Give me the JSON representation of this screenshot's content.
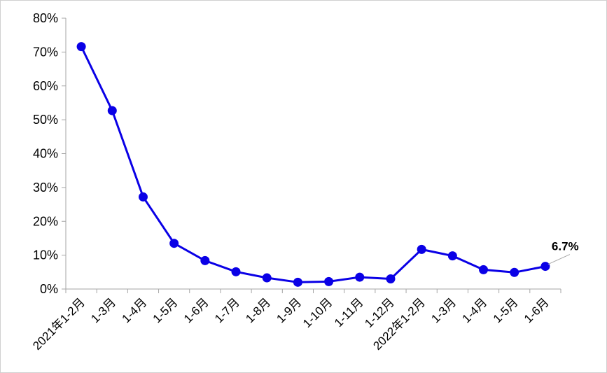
{
  "chart_data": {
    "type": "line",
    "title": "",
    "xlabel": "",
    "ylabel": "",
    "categories": [
      "2021年1-2月",
      "1-3月",
      "1-4月",
      "1-5月",
      "1-6月",
      "1-7月",
      "1-8月",
      "1-9月",
      "1-10月",
      "1-11月",
      "1-12月",
      "2022年1-2月",
      "1-3月",
      "1-4月",
      "1-5月",
      "1-6月"
    ],
    "series": [
      {
        "values": [
          71.6,
          52.7,
          27.2,
          13.5,
          8.4,
          5.1,
          3.3,
          2.0,
          2.2,
          3.5,
          3.0,
          11.7,
          9.8,
          5.7,
          4.9,
          6.7
        ]
      }
    ],
    "yticks": [
      "0%",
      "10%",
      "20%",
      "30%",
      "40%",
      "50%",
      "60%",
      "70%",
      "80%"
    ],
    "ylim": [
      0,
      80
    ],
    "grid": false,
    "annotations": [
      {
        "label": "6.7%"
      }
    ],
    "colors": {
      "line": "#0a00e6",
      "axis": "#a6a6a6",
      "leader": "#a6a6a6"
    }
  }
}
